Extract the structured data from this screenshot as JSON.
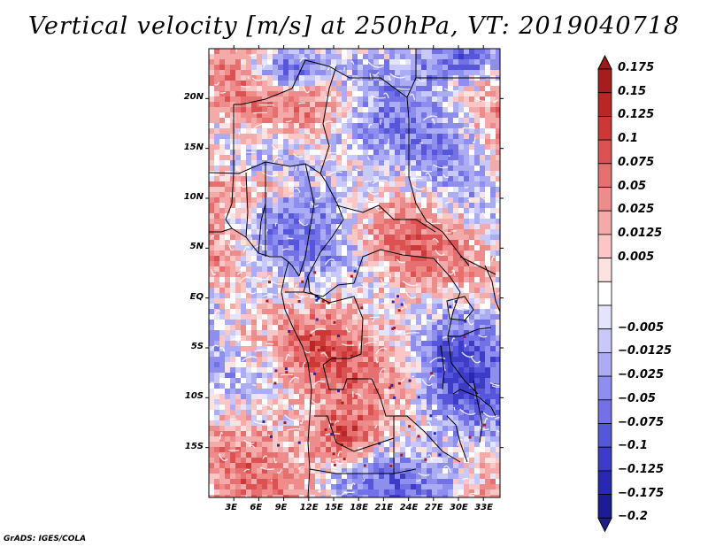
{
  "title": "Vertical velocity [m/s] at 250hPa, VT: 2019040718",
  "credit": "GrADS: IGES/COLA",
  "map": {
    "lon_range": [
      0,
      35
    ],
    "lat_range": [
      -20,
      25
    ],
    "lat_ticks": [
      {
        "label": "20N",
        "value": 20
      },
      {
        "label": "15N",
        "value": 15
      },
      {
        "label": "10N",
        "value": 10
      },
      {
        "label": "5N",
        "value": 5
      },
      {
        "label": "EQ",
        "value": 0
      },
      {
        "label": "5S",
        "value": -5
      },
      {
        "label": "10S",
        "value": -10
      },
      {
        "label": "15S",
        "value": -15
      }
    ],
    "lon_ticks": [
      {
        "label": "3E",
        "value": 3
      },
      {
        "label": "6E",
        "value": 6
      },
      {
        "label": "9E",
        "value": 9
      },
      {
        "label": "12E",
        "value": 12
      },
      {
        "label": "15E",
        "value": 15
      },
      {
        "label": "18E",
        "value": 18
      },
      {
        "label": "21E",
        "value": 21
      },
      {
        "label": "24E",
        "value": 24
      },
      {
        "label": "27E",
        "value": 27
      },
      {
        "label": "30E",
        "value": 30
      },
      {
        "label": "33E",
        "value": 33
      }
    ]
  },
  "colorbar": {
    "levels": [
      {
        "label": "0.175",
        "color": "#a51d1d"
      },
      {
        "label": "0.15",
        "color": "#b82626"
      },
      {
        "label": "0.125",
        "color": "#cc3838"
      },
      {
        "label": "0.1",
        "color": "#dc5252"
      },
      {
        "label": "0.075",
        "color": "#e67070"
      },
      {
        "label": "0.05",
        "color": "#ee8c8c"
      },
      {
        "label": "0.025",
        "color": "#f5aaaa"
      },
      {
        "label": "0.0125",
        "color": "#fac6c6"
      },
      {
        "label": "0.005",
        "color": "#fde2e2"
      },
      {
        "label": "",
        "color": "#ffffff"
      },
      {
        "label": "−0.005",
        "color": "#e4e4fd"
      },
      {
        "label": "−0.0125",
        "color": "#c8c8fa"
      },
      {
        "label": "−0.025",
        "color": "#acacf5"
      },
      {
        "label": "−0.05",
        "color": "#8e8eee"
      },
      {
        "label": "−0.075",
        "color": "#7272e6"
      },
      {
        "label": "−0.1",
        "color": "#5656da"
      },
      {
        "label": "−0.125",
        "color": "#3c3cc8"
      },
      {
        "label": "−0.175",
        "color": "#2828b0"
      },
      {
        "label": "−0.2",
        "color": "#1c1c96"
      }
    ],
    "top_arrow_color": "#a01818",
    "bottom_arrow_color": "#1e1e8a"
  }
}
